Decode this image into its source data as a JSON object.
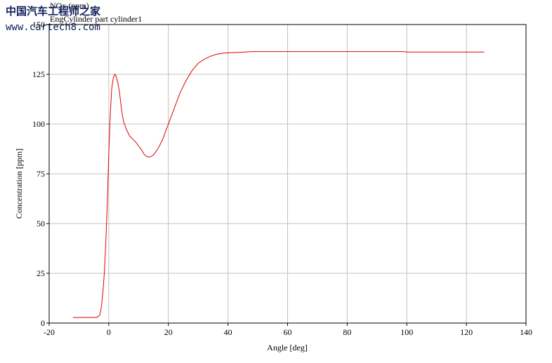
{
  "chart_data": {
    "type": "line",
    "title": "NOx (ppm)",
    "subtitle": "EngCylinder part cylinder1",
    "watermark": [
      "中国汽车工程师之家",
      "www.cartech8.com"
    ],
    "x_label": "Angle [deg]",
    "y_label": "Concentration [ppm]",
    "x": [
      -12,
      -4,
      -3,
      -2.5,
      -2,
      -1.5,
      -1,
      -0.5,
      0,
      0.5,
      1,
      1.5,
      2,
      2.5,
      3,
      3.5,
      4,
      4.5,
      5,
      6,
      7,
      8,
      9,
      10,
      11,
      12,
      13,
      14,
      15,
      16,
      17,
      18,
      19,
      20,
      22,
      24,
      26,
      28,
      30,
      32,
      34,
      36,
      38,
      40,
      44,
      48,
      60,
      80,
      99,
      100,
      126
    ],
    "series": [
      {
        "name": "NOx",
        "color": "#e00000",
        "values": [
          2.8,
          2.8,
          4,
          8,
          15,
          25,
          40,
          60,
          85,
          105,
          118,
          123,
          125,
          124,
          121,
          117,
          111,
          105,
          101,
          97,
          94,
          92.5,
          91,
          89,
          87,
          84.5,
          83.5,
          83.5,
          84.5,
          86.5,
          89,
          92,
          96,
          100,
          108,
          116,
          122,
          127,
          130.5,
          132.5,
          134,
          135,
          135.5,
          135.8,
          136,
          136.4,
          136.4,
          136.4,
          136.4,
          136.2,
          136.2
        ]
      }
    ],
    "xlim": [
      -20,
      140
    ],
    "xticks": [
      -20,
      0,
      20,
      40,
      60,
      80,
      100,
      120,
      140
    ],
    "ylim": [
      0,
      150
    ],
    "yticks": [
      0,
      25,
      50,
      75,
      100,
      125,
      150
    ],
    "grid": true
  }
}
